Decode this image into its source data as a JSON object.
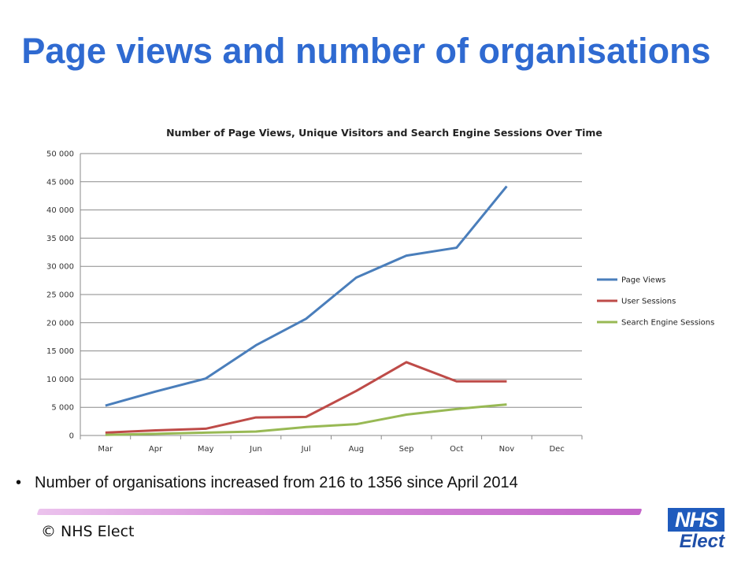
{
  "slide": {
    "title": "Page views and number of organisations",
    "bullet_text": "Number of organisations increased from 216 to 1356 since April 2014",
    "copyright": "© NHS Elect",
    "logo_top": "NHS",
    "logo_bottom": "Elect"
  },
  "colors": {
    "title": "#2f6ad1",
    "page_views": "#4a7ebb",
    "user_sessions": "#be4b48",
    "search_engine_sessions": "#98b954",
    "logo": "#1f5bbd"
  },
  "chart_data": {
    "type": "line",
    "title": "Number of Page Views, Unique Visitors and Search Engine Sessions Over Time",
    "xlabel": "",
    "ylabel": "",
    "categories": [
      "Mar",
      "Apr",
      "May",
      "Jun",
      "Jul",
      "Aug",
      "Sep",
      "Oct",
      "Nov",
      "Dec"
    ],
    "ylim": [
      0,
      50000
    ],
    "yticks": [
      0,
      5000,
      10000,
      15000,
      20000,
      25000,
      30000,
      35000,
      40000,
      45000,
      50000
    ],
    "ytick_labels": [
      "0",
      "5 000",
      "10 000",
      "15 000",
      "20 000",
      "25 000",
      "30 000",
      "35 000",
      "40 000",
      "45 000",
      "50 000"
    ],
    "grid": "horizontal",
    "legend": "right",
    "series": [
      {
        "name": "Page Views",
        "color": "#4a7ebb",
        "values": [
          5300,
          7800,
          10100,
          16000,
          20700,
          28000,
          31900,
          33300,
          44200,
          null
        ]
      },
      {
        "name": "User Sessions",
        "color": "#be4b48",
        "values": [
          500,
          900,
          1200,
          3200,
          3300,
          7900,
          13000,
          9600,
          9600,
          null
        ]
      },
      {
        "name": "Search Engine Sessions",
        "color": "#98b954",
        "values": [
          100,
          300,
          500,
          700,
          1500,
          2000,
          3700,
          4700,
          5500,
          null
        ]
      }
    ]
  }
}
